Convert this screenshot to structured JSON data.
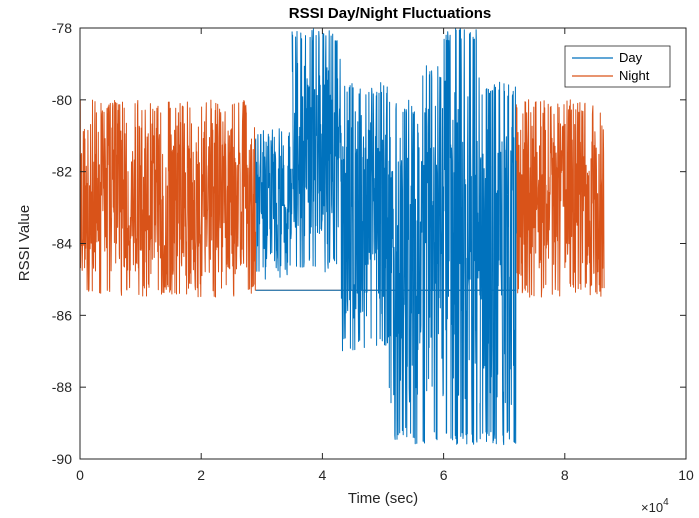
{
  "chart_data": {
    "type": "line",
    "title": "RSSI Day/Night Fluctuations",
    "xlabel": "Time (sec)",
    "ylabel": "RSSI Value",
    "xlim": [
      0,
      10
    ],
    "ylim": [
      -90,
      -78
    ],
    "x_multiplier": {
      "prefix": "×10",
      "exponent": "4"
    },
    "x_ticks": [
      0,
      2,
      4,
      6,
      8,
      10
    ],
    "y_ticks": [
      -78,
      -80,
      -82,
      -84,
      -86,
      -88,
      -90
    ],
    "grid": false,
    "legend_position": "top-right",
    "series": [
      {
        "name": "Day",
        "color": "#0072BD",
        "x_range": [
          2.9,
          7.2
        ],
        "segments": [
          {
            "x_start": 2.9,
            "x_end": 3.5,
            "y_min": -85.0,
            "y_max": -80.8
          },
          {
            "x_start": 3.5,
            "x_end": 4.3,
            "y_min": -84.8,
            "y_max": -78.0
          },
          {
            "x_start": 4.3,
            "x_end": 5.1,
            "y_min": -87.0,
            "y_max": -79.5
          },
          {
            "x_start": 5.1,
            "x_end": 5.5,
            "y_min": -89.5,
            "y_max": -80.0
          },
          {
            "x_start": 5.5,
            "x_end": 6.0,
            "y_min": -89.6,
            "y_max": -79.0
          },
          {
            "x_start": 6.0,
            "x_end": 6.6,
            "y_min": -89.6,
            "y_max": -78.0
          },
          {
            "x_start": 6.6,
            "x_end": 7.2,
            "y_min": -89.6,
            "y_max": -79.5
          }
        ],
        "baseline": {
          "x_start": 2.9,
          "x_end": 7.2,
          "y": -85.3
        }
      },
      {
        "name": "Night",
        "color": "#D95319",
        "segments": [
          {
            "x_start": 0.0,
            "x_end": 2.9,
            "y_min": -85.5,
            "y_max": -80.0
          },
          {
            "x_start": 7.2,
            "x_end": 8.65,
            "y_min": -85.5,
            "y_max": -80.0
          }
        ],
        "baseline": {
          "x_start": 2.9,
          "x_end": 7.2,
          "y": -85.3
        }
      }
    ]
  }
}
